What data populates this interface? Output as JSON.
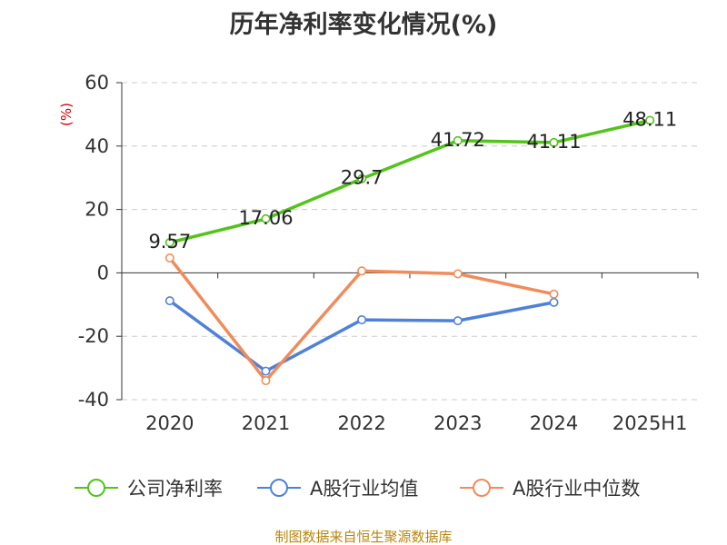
{
  "chart_data": {
    "type": "line",
    "title": "历年净利率变化情况(%)",
    "unit_label": "(%)",
    "categories": [
      "2020",
      "2021",
      "2022",
      "2023",
      "2024",
      "2025H1"
    ],
    "ylim": [
      -40,
      60
    ],
    "yticks": [
      "60",
      "40",
      "20",
      "0",
      "-20",
      "-40"
    ],
    "ytick_values": [
      60,
      40,
      20,
      0,
      -20,
      -40
    ],
    "grid": true,
    "legend_position": "bottom",
    "series": [
      {
        "name": "公司净利率",
        "color": "#52c41a",
        "values": [
          9.57,
          17.06,
          29.7,
          41.72,
          41.11,
          48.11
        ],
        "labels": [
          "9.57",
          "17.06",
          "29.7",
          "41.72",
          "41.11",
          "48.11"
        ]
      },
      {
        "name": "A股行业均值",
        "color": "#4f81d9",
        "values": [
          -8.8,
          -31.0,
          -14.8,
          -15.1,
          -9.3,
          null
        ]
      },
      {
        "name": "A股行业中位数",
        "color": "#f08c5a",
        "values": [
          4.7,
          -34.0,
          0.6,
          -0.3,
          -6.7,
          null
        ]
      }
    ],
    "source": "制图数据来自恒生聚源数据库"
  }
}
